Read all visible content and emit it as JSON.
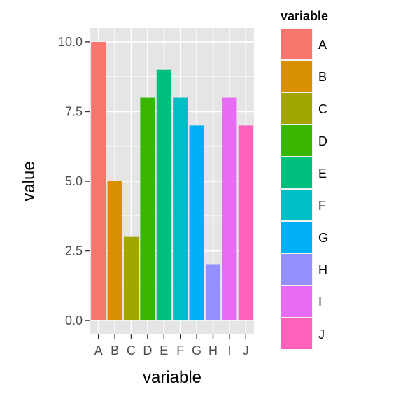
{
  "chart_data": {
    "type": "bar",
    "categories": [
      "A",
      "B",
      "C",
      "D",
      "E",
      "F",
      "G",
      "H",
      "I",
      "J"
    ],
    "values": [
      10,
      5,
      3,
      8,
      9,
      8,
      7,
      2,
      8,
      7
    ],
    "colors": [
      "#F8766D",
      "#D89000",
      "#A3A500",
      "#39B600",
      "#00BF7D",
      "#00BFC4",
      "#00B0F6",
      "#9590FF",
      "#E76BF3",
      "#FF62BC"
    ],
    "title": "",
    "xlabel": "variable",
    "ylabel": "value",
    "ylim": [
      -0.5,
      10.5
    ],
    "yticks": [
      0,
      2.5,
      5,
      7.5,
      10
    ],
    "ytick_labels": [
      "0.0",
      "2.5",
      "5.0",
      "7.5",
      "10.0"
    ],
    "grid": true,
    "panel_background": "#E5E5E5",
    "grid_color": "#FFFFFF",
    "legend": {
      "title": "variable",
      "position": "right",
      "entries": [
        "A",
        "B",
        "C",
        "D",
        "E",
        "F",
        "G",
        "H",
        "I",
        "J"
      ]
    }
  }
}
